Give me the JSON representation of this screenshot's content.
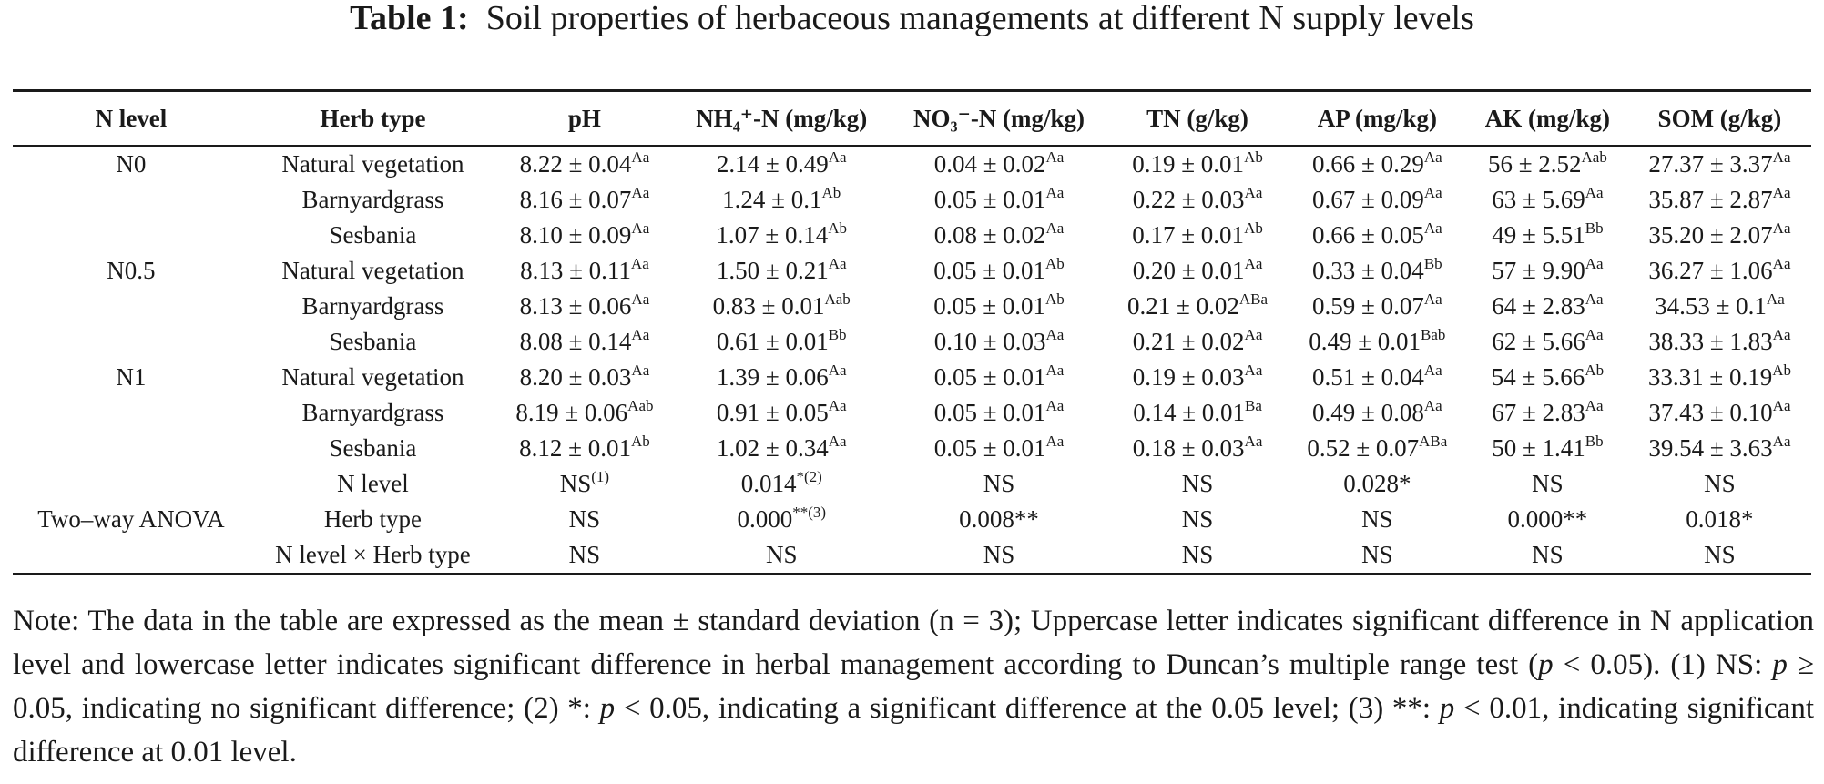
{
  "caption": {
    "label": "Table 1:",
    "text": "Soil properties of herbaceous managements at different N supply levels"
  },
  "columns": [
    "N level",
    "Herb type",
    "pH",
    "NH₄⁺-N (mg/kg)",
    "NO₃⁻-N (mg/kg)",
    "TN (g/kg)",
    "AP (mg/kg)",
    "AK (mg/kg)",
    "SOM (g/kg)"
  ],
  "rows": [
    {
      "n_level": "N0",
      "herb": "Natural vegetation",
      "cells": [
        {
          "v": "8.22 ± 0.04",
          "s": "Aa"
        },
        {
          "v": "2.14 ± 0.49",
          "s": "Aa"
        },
        {
          "v": "0.04 ± 0.02",
          "s": "Aa"
        },
        {
          "v": "0.19 ± 0.01",
          "s": "Ab"
        },
        {
          "v": "0.66 ± 0.29",
          "s": "Aa"
        },
        {
          "v": "56 ± 2.52",
          "s": "Aab"
        },
        {
          "v": "27.37 ± 3.37",
          "s": "Aa"
        }
      ]
    },
    {
      "n_level": "",
      "herb": "Barnyardgrass",
      "cells": [
        {
          "v": "8.16 ± 0.07",
          "s": "Aa"
        },
        {
          "v": "1.24 ± 0.1",
          "s": "Ab"
        },
        {
          "v": "0.05 ± 0.01",
          "s": "Aa"
        },
        {
          "v": "0.22 ± 0.03",
          "s": "Aa"
        },
        {
          "v": "0.67 ± 0.09",
          "s": "Aa"
        },
        {
          "v": "63 ± 5.69",
          "s": "Aa"
        },
        {
          "v": "35.87 ± 2.87",
          "s": "Aa"
        }
      ]
    },
    {
      "n_level": "",
      "herb": "Sesbania",
      "cells": [
        {
          "v": "8.10 ± 0.09",
          "s": "Aa"
        },
        {
          "v": "1.07 ± 0.14",
          "s": "Ab"
        },
        {
          "v": "0.08 ± 0.02",
          "s": "Aa"
        },
        {
          "v": "0.17 ± 0.01",
          "s": "Ab"
        },
        {
          "v": "0.66 ± 0.05",
          "s": "Aa"
        },
        {
          "v": "49 ± 5.51",
          "s": "Bb"
        },
        {
          "v": "35.20 ± 2.07",
          "s": "Aa"
        }
      ]
    },
    {
      "n_level": "N0.5",
      "herb": "Natural vegetation",
      "cells": [
        {
          "v": "8.13 ± 0.11",
          "s": "Aa"
        },
        {
          "v": "1.50 ± 0.21",
          "s": "Aa"
        },
        {
          "v": "0.05 ± 0.01",
          "s": "Ab"
        },
        {
          "v": "0.20 ± 0.01",
          "s": "Aa"
        },
        {
          "v": "0.33 ± 0.04",
          "s": "Bb"
        },
        {
          "v": "57 ± 9.90",
          "s": "Aa"
        },
        {
          "v": "36.27 ± 1.06",
          "s": "Aa"
        }
      ]
    },
    {
      "n_level": "",
      "herb": "Barnyardgrass",
      "cells": [
        {
          "v": "8.13 ± 0.06",
          "s": "Aa"
        },
        {
          "v": "0.83 ± 0.01",
          "s": "Aab"
        },
        {
          "v": "0.05 ± 0.01",
          "s": "Ab"
        },
        {
          "v": "0.21 ± 0.02",
          "s": "ABa"
        },
        {
          "v": "0.59 ± 0.07",
          "s": "Aa"
        },
        {
          "v": "64 ± 2.83",
          "s": "Aa"
        },
        {
          "v": "34.53 ± 0.1",
          "s": "Aa"
        }
      ]
    },
    {
      "n_level": "",
      "herb": "Sesbania",
      "cells": [
        {
          "v": "8.08 ± 0.14",
          "s": "Aa"
        },
        {
          "v": "0.61 ± 0.01",
          "s": "Bb"
        },
        {
          "v": "0.10 ± 0.03",
          "s": "Aa"
        },
        {
          "v": "0.21 ± 0.02",
          "s": "Aa"
        },
        {
          "v": "0.49 ± 0.01",
          "s": "Bab"
        },
        {
          "v": "62 ± 5.66",
          "s": "Aa"
        },
        {
          "v": "38.33 ± 1.83",
          "s": "Aa"
        }
      ]
    },
    {
      "n_level": "N1",
      "herb": "Natural vegetation",
      "cells": [
        {
          "v": "8.20 ± 0.03",
          "s": "Aa"
        },
        {
          "v": "1.39 ± 0.06",
          "s": "Aa"
        },
        {
          "v": "0.05 ± 0.01",
          "s": "Aa"
        },
        {
          "v": "0.19 ± 0.03",
          "s": "Aa"
        },
        {
          "v": "0.51 ± 0.04",
          "s": "Aa"
        },
        {
          "v": "54 ± 5.66",
          "s": "Ab"
        },
        {
          "v": "33.31 ± 0.19",
          "s": "Ab"
        }
      ]
    },
    {
      "n_level": "",
      "herb": "Barnyardgrass",
      "cells": [
        {
          "v": "8.19 ± 0.06",
          "s": "Aab"
        },
        {
          "v": "0.91 ± 0.05",
          "s": "Aa"
        },
        {
          "v": "0.05 ± 0.01",
          "s": "Aa"
        },
        {
          "v": "0.14 ± 0.01",
          "s": "Ba"
        },
        {
          "v": "0.49 ± 0.08",
          "s": "Aa"
        },
        {
          "v": "67 ± 2.83",
          "s": "Aa"
        },
        {
          "v": "37.43 ± 0.10",
          "s": "Aa"
        }
      ]
    },
    {
      "n_level": "",
      "herb": "Sesbania",
      "cells": [
        {
          "v": "8.12 ± 0.01",
          "s": "Ab"
        },
        {
          "v": "1.02 ± 0.34",
          "s": "Aa"
        },
        {
          "v": "0.05 ± 0.01",
          "s": "Aa"
        },
        {
          "v": "0.18 ± 0.03",
          "s": "Aa"
        },
        {
          "v": "0.52 ± 0.07",
          "s": "ABa"
        },
        {
          "v": "50 ± 1.41",
          "s": "Bb"
        },
        {
          "v": "39.54 ± 3.63",
          "s": "Aa"
        }
      ]
    }
  ],
  "anova": {
    "label": "Two–way ANOVA",
    "rows": [
      {
        "factor": "N level",
        "cells": [
          {
            "v": "NS",
            "s": "(1)"
          },
          {
            "v": "0.014",
            "s": "*(2)"
          },
          {
            "v": "NS",
            "s": ""
          },
          {
            "v": "NS",
            "s": ""
          },
          {
            "v": "0.028*",
            "s": ""
          },
          {
            "v": "NS",
            "s": ""
          },
          {
            "v": "NS",
            "s": ""
          }
        ]
      },
      {
        "factor": "Herb type",
        "cells": [
          {
            "v": "NS",
            "s": ""
          },
          {
            "v": "0.000",
            "s": "**(3)"
          },
          {
            "v": "0.008**",
            "s": ""
          },
          {
            "v": "NS",
            "s": ""
          },
          {
            "v": "NS",
            "s": ""
          },
          {
            "v": "0.000**",
            "s": ""
          },
          {
            "v": "0.018*",
            "s": ""
          }
        ]
      },
      {
        "factor": "N level × Herb type",
        "cells": [
          {
            "v": "NS",
            "s": ""
          },
          {
            "v": "NS",
            "s": ""
          },
          {
            "v": "NS",
            "s": ""
          },
          {
            "v": "NS",
            "s": ""
          },
          {
            "v": "NS",
            "s": ""
          },
          {
            "v": "NS",
            "s": ""
          },
          {
            "v": "NS",
            "s": ""
          }
        ]
      }
    ]
  },
  "note": {
    "p1": "Note: The data in the table are expressed as the mean ± standard deviation (n = 3); Uppercase letter indicates significant difference in N application level and lowercase letter indicates significant difference in herbal management according to Duncan’s multiple range test (",
    "p": "p",
    "p2": " < 0.05). (1) NS: ",
    "p3": " ≥ 0.05, indicating no significant difference; (2) *: ",
    "p4": " < 0.05, indicating a significant difference at the 0.05 level; (3) **: ",
    "p5": " < 0.01, indicating significant difference at 0.01 level."
  }
}
